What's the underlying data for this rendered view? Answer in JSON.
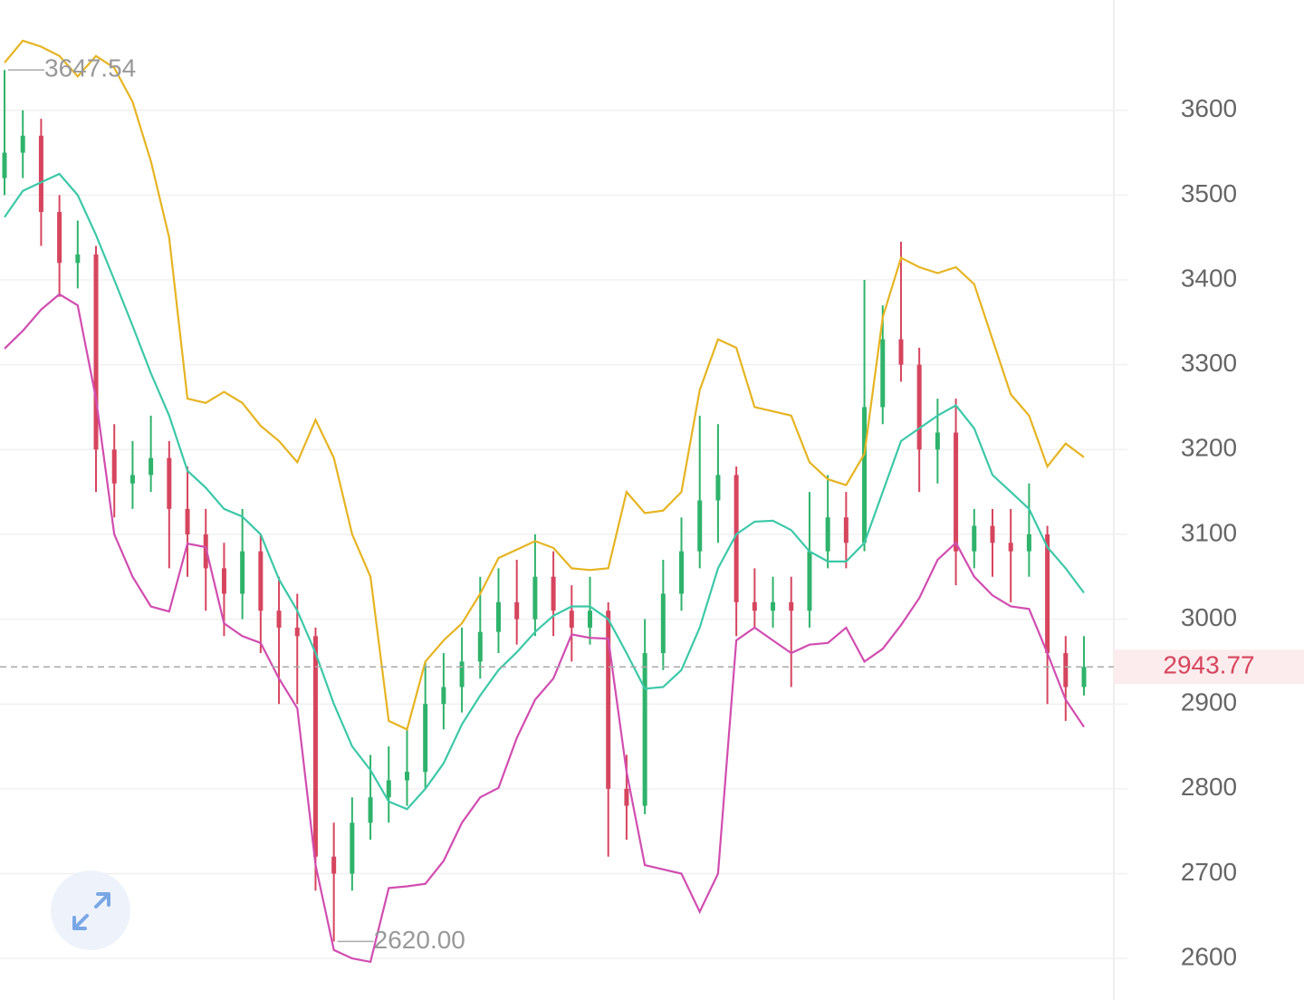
{
  "chart_data": {
    "type": "candlestick",
    "up_color": "#2fb36b",
    "down_color": "#d6455e",
    "ylim": [
      2551,
      3730
    ],
    "yticks": [
      2600,
      2700,
      2800,
      2900,
      3000,
      3100,
      3200,
      3300,
      3400,
      3500,
      3600
    ],
    "grid": true,
    "open": [
      3520,
      3550,
      3570,
      3480,
      3420,
      3430,
      3200,
      3160,
      3170,
      3190,
      3130,
      3100,
      3060,
      3030,
      3080,
      3010,
      2990,
      2980,
      2720,
      2700,
      2760,
      2790,
      2810,
      2820,
      2900,
      2920,
      2950,
      2985,
      3020,
      3000,
      3050,
      3010,
      2990,
      3010,
      2800,
      2780,
      2960,
      3030,
      3080,
      3140,
      3170,
      3020,
      3010,
      3020,
      3010,
      3080,
      3120,
      3090,
      3250,
      3330,
      3300,
      3200,
      3220,
      3080,
      3110,
      3090,
      3080,
      3100,
      2960,
      2920
    ],
    "high": [
      3647.54,
      3600,
      3590,
      3500,
      3470,
      3440,
      3230,
      3210,
      3240,
      3210,
      3180,
      3130,
      3090,
      3130,
      3100,
      3050,
      3030,
      2990,
      2760,
      2790,
      2840,
      2850,
      2870,
      2950,
      2960,
      2990,
      3050,
      3060,
      3070,
      3100,
      3080,
      3040,
      3050,
      3020,
      2840,
      3000,
      3070,
      3120,
      3240,
      3230,
      3180,
      3060,
      3050,
      3050,
      3150,
      3170,
      3150,
      3400,
      3370,
      3445,
      3320,
      3260,
      3260,
      3130,
      3130,
      3130,
      3160,
      3110,
      2980,
      2980
    ],
    "low": [
      3500,
      3520,
      3440,
      3380,
      3390,
      3150,
      3120,
      3130,
      3150,
      3060,
      3050,
      3010,
      2980,
      3000,
      2960,
      2900,
      2900,
      2680,
      2620,
      2680,
      2740,
      2760,
      2780,
      2800,
      2870,
      2890,
      2930,
      2960,
      2970,
      2980,
      2980,
      2950,
      2970,
      2720,
      2740,
      2770,
      2940,
      3010,
      3060,
      3090,
      2980,
      2990,
      2990,
      2920,
      2990,
      3060,
      3060,
      3080,
      3230,
      3280,
      3150,
      3160,
      3040,
      3060,
      3050,
      3020,
      3050,
      2900,
      2880,
      2910
    ],
    "close": [
      3550,
      3570,
      3480,
      3420,
      3430,
      3200,
      3160,
      3170,
      3190,
      3130,
      3100,
      3060,
      3030,
      3080,
      3010,
      2990,
      2980,
      2720,
      2700,
      2760,
      2790,
      2810,
      2820,
      2900,
      2920,
      2950,
      2985,
      3020,
      3000,
      3050,
      3010,
      2990,
      3010,
      2800,
      2780,
      2960,
      3030,
      3080,
      3140,
      3170,
      3020,
      3010,
      3020,
      3010,
      3080,
      3120,
      3090,
      3250,
      3330,
      3300,
      3200,
      3220,
      3080,
      3110,
      3090,
      3080,
      3100,
      2960,
      2920,
      2943.77
    ],
    "bands": [
      {
        "color": "#e6b422",
        "values": [
          3656,
          3682,
          3675,
          3664,
          3640,
          3664,
          3650,
          3610,
          3540,
          3450,
          3260,
          3255,
          3268,
          3255,
          3228,
          3210,
          3185,
          3235,
          3190,
          3100,
          3050,
          2880,
          2870,
          2950,
          2975,
          2995,
          3030,
          3072,
          3082,
          3092,
          3084,
          3060,
          3058,
          3060,
          3150,
          3125,
          3128,
          3150,
          3270,
          3330,
          3320,
          3250,
          3245,
          3240,
          3185,
          3165,
          3158,
          3195,
          3356,
          3426,
          3415,
          3408,
          3415,
          3395,
          3330,
          3265,
          3240,
          3180,
          3207,
          3191
        ]
      },
      {
        "color": "#3cc8a8",
        "values": [
          3474,
          3505,
          3515,
          3525,
          3500,
          3453,
          3400,
          3346,
          3290,
          3240,
          3175,
          3155,
          3130,
          3121,
          3100,
          3047,
          3010,
          2960,
          2900,
          2850,
          2822,
          2785,
          2776,
          2800,
          2830,
          2876,
          2910,
          2940,
          2961,
          2985,
          3004,
          3015,
          3015,
          3000,
          2960,
          2918,
          2920,
          2940,
          2990,
          3060,
          3100,
          3115,
          3116,
          3105,
          3080,
          3068,
          3068,
          3090,
          3150,
          3210,
          3225,
          3240,
          3252,
          3225,
          3170,
          3150,
          3130,
          3085,
          3060,
          3031
        ]
      },
      {
        "color": "#d14db0",
        "values": [
          3319,
          3340,
          3365,
          3383,
          3370,
          3260,
          3100,
          3050,
          3015,
          3009,
          3089,
          3085,
          2995,
          2980,
          2972,
          2930,
          2895,
          2710,
          2610,
          2600,
          2596,
          2683,
          2685,
          2688,
          2715,
          2760,
          2790,
          2801,
          2860,
          2905,
          2930,
          2982,
          2978,
          2977,
          2820,
          2710,
          2705,
          2700,
          2655,
          2700,
          2975,
          2990,
          2975,
          2960,
          2970,
          2972,
          2990,
          2950,
          2965,
          2993,
          3025,
          3070,
          3090,
          3050,
          3028,
          3015,
          3012,
          2960,
          2905,
          2873
        ]
      }
    ],
    "last_price": 2943.77,
    "annotations": [
      {
        "value": 3647.54,
        "label": "3647.54"
      },
      {
        "value": 2620,
        "label": "2620.00"
      }
    ]
  }
}
